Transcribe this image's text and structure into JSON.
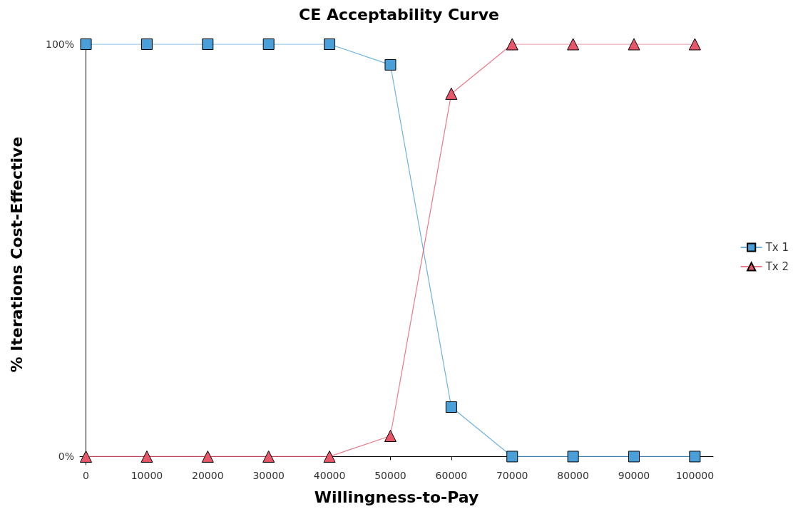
{
  "chart_data": {
    "type": "line",
    "title": "CE Acceptability Curve",
    "xlabel": "Willingness-to-Pay",
    "ylabel": "% Iterations Cost-Effective",
    "x": [
      0,
      10000,
      20000,
      30000,
      40000,
      50000,
      60000,
      70000,
      80000,
      90000,
      100000
    ],
    "series": [
      {
        "name": "Tx 1",
        "color": "#4a9fd8",
        "marker": "square",
        "values": [
          100,
          100,
          100,
          100,
          100,
          95,
          12,
          0,
          0,
          0,
          0
        ]
      },
      {
        "name": "Tx 2",
        "color": "#e8566a",
        "marker": "triangle",
        "values": [
          0,
          0,
          0,
          0,
          0,
          5,
          88,
          100,
          100,
          100,
          100
        ]
      }
    ],
    "xlim": [
      -1000,
      103000
    ],
    "xticks": [
      0,
      10000,
      20000,
      30000,
      40000,
      50000,
      60000,
      70000,
      80000,
      90000,
      100000
    ],
    "ylim": [
      -2,
      100
    ],
    "yticks": [
      {
        "value": 0,
        "label": "0%"
      },
      {
        "value": 100,
        "label": "100%"
      }
    ],
    "grid": false,
    "legend": "right",
    "line_style": "solid"
  }
}
